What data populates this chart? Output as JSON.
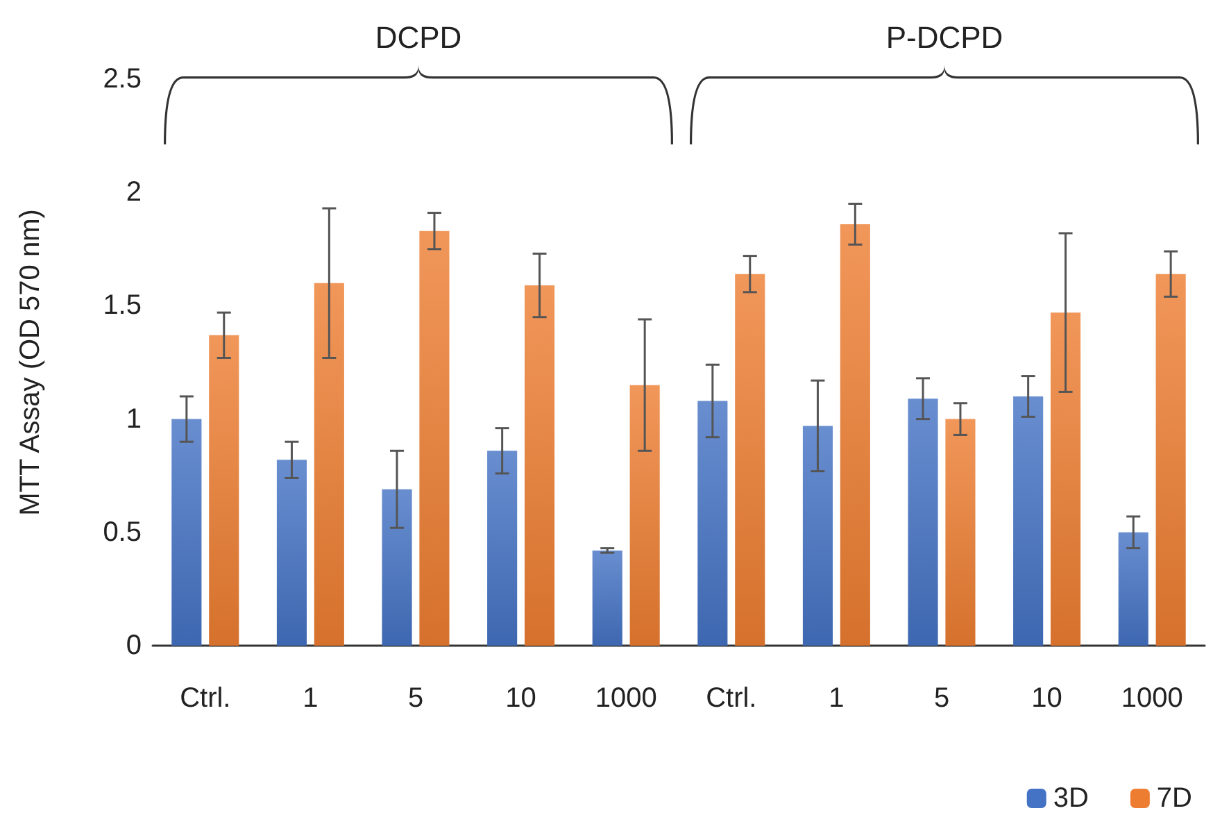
{
  "chart_data": {
    "type": "bar",
    "ylabel": "MTT Assay (OD 570 nm)",
    "categories": [
      "Ctrl.",
      "1",
      "5",
      "10",
      "1000",
      "Ctrl.",
      "1",
      "5",
      "10",
      "1000"
    ],
    "series": [
      {
        "name": "3D",
        "color": "#4472c4",
        "values": [
          1.0,
          0.82,
          0.69,
          0.86,
          0.42,
          1.08,
          0.97,
          1.09,
          1.1,
          0.5
        ],
        "errors": [
          0.1,
          0.08,
          0.17,
          0.1,
          0.01,
          0.16,
          0.2,
          0.09,
          0.09,
          0.07
        ]
      },
      {
        "name": "7D",
        "color": "#ed7d31",
        "values": [
          1.37,
          1.6,
          1.83,
          1.59,
          1.15,
          1.64,
          1.86,
          1.0,
          1.47,
          1.64
        ],
        "errors": [
          0.1,
          0.33,
          0.08,
          0.14,
          0.29,
          0.08,
          0.09,
          0.07,
          0.35,
          0.1
        ]
      }
    ],
    "ylim": [
      0,
      2.5
    ],
    "yticks": [
      0,
      0.5,
      1,
      1.5,
      2,
      2.5
    ],
    "grid": false,
    "legend": "bottom right",
    "annotations": [
      "DCPD",
      "P-DCPD"
    ]
  }
}
